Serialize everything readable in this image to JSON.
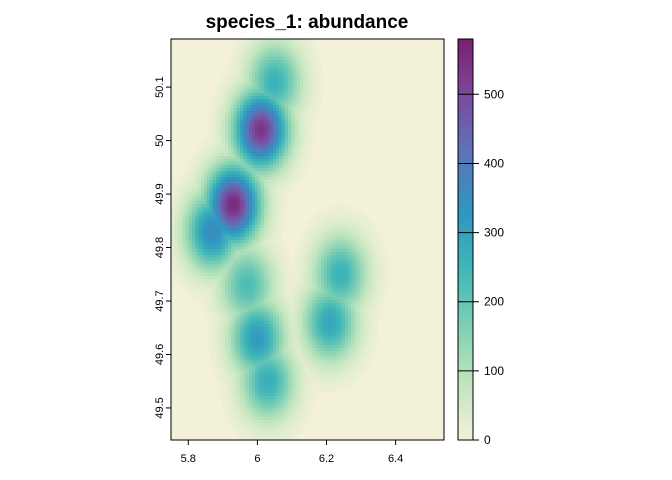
{
  "chart_data": {
    "type": "heatmap",
    "title": "species_1: abundance",
    "xlabel": "",
    "ylabel": "",
    "xlim": [
      5.75,
      6.54
    ],
    "ylim": [
      49.44,
      50.19
    ],
    "x_ticks": [
      "5.8",
      "6",
      "6.2",
      "6.4"
    ],
    "x_tick_values": [
      5.8,
      6.0,
      6.2,
      6.4
    ],
    "y_ticks": [
      "49.5",
      "49.6",
      "49.7",
      "49.8",
      "49.9",
      "50",
      "50.1"
    ],
    "y_tick_values": [
      49.5,
      49.6,
      49.7,
      49.8,
      49.9,
      50.0,
      50.1
    ],
    "grid": false,
    "colorbar": {
      "min": 0,
      "max": 580,
      "ticks": [
        "0",
        "100",
        "200",
        "300",
        "400",
        "500"
      ],
      "tick_values": [
        0,
        100,
        200,
        300,
        400,
        500
      ],
      "palette": [
        "#f4f1d9",
        "#bfe5bd",
        "#7ecfb3",
        "#3fb6b7",
        "#2f95c2",
        "#5b75b9",
        "#7c4a9e",
        "#7a1f6e"
      ]
    },
    "hotspots": [
      {
        "x": 5.93,
        "y": 49.88,
        "value": 560
      },
      {
        "x": 6.01,
        "y": 50.02,
        "value": 540
      },
      {
        "x": 5.87,
        "y": 49.83,
        "value": 360
      },
      {
        "x": 6.05,
        "y": 50.11,
        "value": 260
      },
      {
        "x": 6.24,
        "y": 49.75,
        "value": 260
      },
      {
        "x": 6.21,
        "y": 49.66,
        "value": 290
      },
      {
        "x": 6.0,
        "y": 49.63,
        "value": 320
      },
      {
        "x": 6.03,
        "y": 49.55,
        "value": 270
      },
      {
        "x": 5.97,
        "y": 49.73,
        "value": 230
      }
    ]
  }
}
